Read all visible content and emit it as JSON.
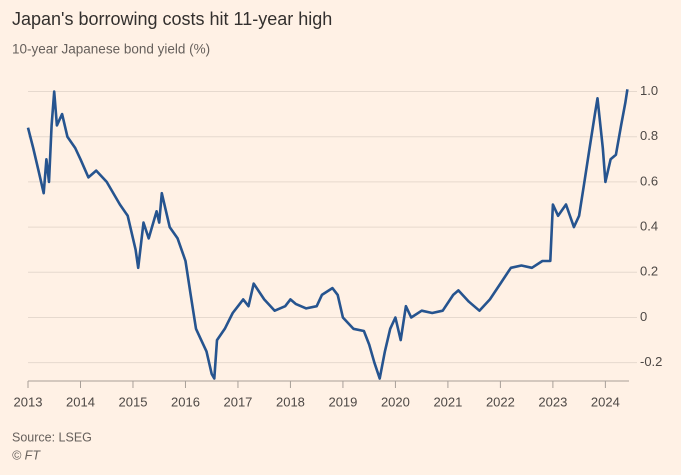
{
  "chart_data": {
    "type": "line",
    "title": "Japan's borrowing costs hit 11-year high",
    "subtitle": "10-year Japanese bond yield (%)",
    "source": "Source: LSEG",
    "credit": "© FT",
    "x": [
      2013.0,
      2013.1,
      2013.2,
      2013.3,
      2013.35,
      2013.4,
      2013.45,
      2013.5,
      2013.55,
      2013.65,
      2013.75,
      2013.9,
      2014.0,
      2014.15,
      2014.3,
      2014.5,
      2014.75,
      2014.9,
      2015.05,
      2015.1,
      2015.2,
      2015.3,
      2015.45,
      2015.5,
      2015.55,
      2015.7,
      2015.85,
      2016.0,
      2016.1,
      2016.2,
      2016.3,
      2016.4,
      2016.5,
      2016.55,
      2016.6,
      2016.75,
      2016.9,
      2017.0,
      2017.1,
      2017.2,
      2017.3,
      2017.5,
      2017.7,
      2017.9,
      2018.0,
      2018.1,
      2018.3,
      2018.5,
      2018.6,
      2018.8,
      2018.9,
      2019.0,
      2019.2,
      2019.4,
      2019.5,
      2019.6,
      2019.7,
      2019.8,
      2019.9,
      2020.0,
      2020.1,
      2020.2,
      2020.3,
      2020.5,
      2020.7,
      2020.9,
      2021.1,
      2021.2,
      2021.4,
      2021.6,
      2021.8,
      2022.0,
      2022.2,
      2022.4,
      2022.6,
      2022.8,
      2022.95,
      2023.0,
      2023.1,
      2023.25,
      2023.4,
      2023.5,
      2023.6,
      2023.7,
      2023.8,
      2023.85,
      2023.95,
      2024.0,
      2024.1,
      2024.2,
      2024.3,
      2024.38,
      2024.42
    ],
    "series": [
      {
        "name": "10-year Japanese bond yield",
        "color": "#26548f",
        "values": [
          0.84,
          0.75,
          0.65,
          0.55,
          0.7,
          0.6,
          0.85,
          1.0,
          0.85,
          0.9,
          0.8,
          0.75,
          0.7,
          0.62,
          0.65,
          0.6,
          0.5,
          0.45,
          0.3,
          0.22,
          0.42,
          0.35,
          0.47,
          0.42,
          0.55,
          0.4,
          0.35,
          0.25,
          0.1,
          -0.05,
          -0.1,
          -0.15,
          -0.25,
          -0.27,
          -0.1,
          -0.05,
          0.02,
          0.05,
          0.08,
          0.05,
          0.15,
          0.08,
          0.03,
          0.05,
          0.08,
          0.06,
          0.04,
          0.05,
          0.1,
          0.13,
          0.1,
          0.0,
          -0.05,
          -0.06,
          -0.12,
          -0.2,
          -0.27,
          -0.15,
          -0.05,
          0.0,
          -0.1,
          0.05,
          0.0,
          0.03,
          0.02,
          0.03,
          0.1,
          0.12,
          0.07,
          0.03,
          0.08,
          0.15,
          0.22,
          0.23,
          0.22,
          0.25,
          0.25,
          0.5,
          0.45,
          0.5,
          0.4,
          0.45,
          0.6,
          0.75,
          0.9,
          0.97,
          0.75,
          0.6,
          0.7,
          0.72,
          0.85,
          0.95,
          1.01
        ]
      }
    ],
    "xlim": [
      2013,
      2024.45
    ],
    "xticks": [
      2013,
      2014,
      2015,
      2016,
      2017,
      2018,
      2019,
      2020,
      2021,
      2022,
      2023,
      2024
    ],
    "ylim": [
      -0.29,
      1.06
    ],
    "yticks": [
      -0.2,
      0,
      0.2,
      0.4,
      0.6,
      0.8,
      {
        "value": 1,
        "label": "1.0"
      }
    ],
    "grid": true
  }
}
